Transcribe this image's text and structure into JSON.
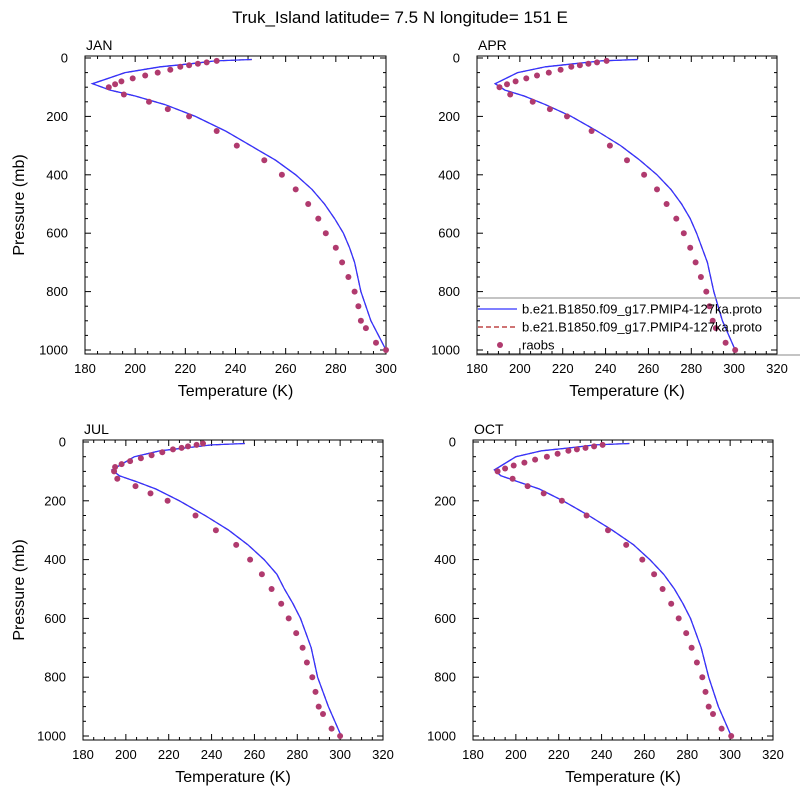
{
  "figure_title": "Truk_Island  latitude= 7.5 N longitude= 151 E",
  "legend": {
    "entries": [
      {
        "label": "b.e21.B1850.f09_g17.PMIP4-127ka.proto",
        "style": "solid",
        "color": "#3333ff"
      },
      {
        "label": "b.e21.B1850.f09_g17.PMIP4-127ka.proto",
        "style": "dashed",
        "color": "#b22222"
      },
      {
        "label": "raobs",
        "style": "dots",
        "color": "#b03a6e"
      }
    ]
  },
  "chart_data": [
    {
      "type": "line",
      "title": "JAN",
      "xlabel": "Temperature (K)",
      "ylabel": "Pressure (mb)",
      "xlim": [
        180,
        300
      ],
      "ylim": [
        1000,
        0
      ],
      "xticks": [
        "180",
        "200",
        "220",
        "240",
        "260",
        "280",
        "300"
      ],
      "yticks": [
        "0",
        "200",
        "400",
        "600",
        "800",
        "1000"
      ],
      "model": {
        "temperature": [
          246.5,
          232.0,
          222.0,
          210.0,
          196.0,
          183.0,
          190.0,
          200.0,
          212.0,
          224.0,
          236.0,
          246.0,
          256.0,
          264.0,
          270.5,
          275.5,
          279.5,
          283.0,
          285.5,
          287.5,
          290.0,
          294.0,
          297.0,
          300.0
        ],
        "pressure": [
          5,
          10,
          20,
          30,
          50,
          88,
          110,
          130,
          160,
          200,
          250,
          300,
          350,
          400,
          450,
          500,
          550,
          600,
          650,
          700,
          800,
          900,
          950,
          1000
        ]
      },
      "raobs": {
        "temperature": [
          232.5,
          228.5,
          225.0,
          221.5,
          218.0,
          214.0,
          209.0,
          204.0,
          199.0,
          194.5,
          192.0,
          189.5,
          195.5,
          205.5,
          213.0,
          221.5,
          232.5,
          240.5,
          251.5,
          258.5,
          264.0,
          269.0,
          273.0,
          276.0,
          280.0,
          282.5,
          285.0,
          287.5,
          289.0,
          290.0,
          292.0,
          296.0,
          300.0
        ],
        "pressure": [
          10,
          15,
          20,
          25,
          30,
          40,
          50,
          60,
          70,
          80,
          90,
          100,
          125,
          150,
          175,
          200,
          250,
          300,
          350,
          400,
          450,
          500,
          550,
          600,
          650,
          700,
          750,
          800,
          850,
          900,
          925,
          975,
          1000
        ]
      }
    },
    {
      "type": "line",
      "title": "APR",
      "xlabel": "Temperature (K)",
      "ylabel": "",
      "xlim": [
        180,
        320
      ],
      "ylim": [
        1000,
        0
      ],
      "xticks": [
        "180",
        "200",
        "220",
        "240",
        "260",
        "280",
        "300",
        "320"
      ],
      "yticks": [
        "0",
        "200",
        "400",
        "600",
        "800",
        "1000"
      ],
      "model": {
        "temperature": [
          255.0,
          238.0,
          225.0,
          212.0,
          199.0,
          188.5,
          193.0,
          202.0,
          212.0,
          224.0,
          236.0,
          247.0,
          256.0,
          264.0,
          270.5,
          275.5,
          279.5,
          282.5,
          285.0,
          287.5,
          290.5,
          294.5,
          297.5,
          300.5
        ],
        "pressure": [
          5,
          10,
          20,
          30,
          50,
          88,
          110,
          130,
          160,
          200,
          250,
          300,
          350,
          400,
          450,
          500,
          550,
          600,
          650,
          700,
          800,
          900,
          950,
          1000
        ]
      },
      "raobs": {
        "temperature": [
          240.5,
          236.0,
          232.0,
          228.0,
          224.0,
          219.0,
          213.5,
          208.0,
          203.0,
          198.0,
          194.0,
          190.5,
          195.5,
          206.0,
          214.0,
          222.0,
          233.5,
          242.0,
          250.0,
          258.0,
          264.0,
          268.5,
          273.0,
          276.5,
          279.5,
          282.0,
          284.5,
          287.0,
          288.5,
          290.0,
          291.5,
          296.0,
          300.5
        ],
        "pressure": [
          10,
          15,
          20,
          25,
          30,
          40,
          50,
          60,
          70,
          80,
          90,
          100,
          125,
          150,
          175,
          200,
          250,
          300,
          350,
          400,
          450,
          500,
          550,
          600,
          650,
          700,
          750,
          800,
          850,
          900,
          925,
          975,
          1000
        ]
      }
    },
    {
      "type": "line",
      "title": "JUL",
      "xlabel": "Temperature (K)",
      "ylabel": "Pressure (mb)",
      "xlim": [
        180,
        320
      ],
      "ylim": [
        1000,
        0
      ],
      "xticks": [
        "180",
        "200",
        "220",
        "240",
        "260",
        "280",
        "300",
        "320"
      ],
      "yticks": [
        "0",
        "200",
        "400",
        "600",
        "800",
        "1000"
      ],
      "model": {
        "temperature": [
          255.5,
          240.0,
          228.0,
          216.0,
          204.0,
          193.5,
          197.0,
          205.0,
          214.0,
          225.0,
          237.0,
          248.0,
          257.0,
          264.5,
          270.5,
          274.0,
          278.0,
          281.5,
          284.0,
          286.5,
          289.5,
          294.5,
          297.5,
          300.5
        ],
        "pressure": [
          5,
          10,
          20,
          30,
          50,
          95,
          115,
          135,
          160,
          200,
          250,
          300,
          350,
          400,
          450,
          500,
          550,
          600,
          650,
          700,
          800,
          900,
          950,
          1000
        ]
      },
      "raobs": {
        "temperature": [
          236.0,
          233.0,
          229.0,
          226.0,
          222.0,
          217.0,
          212.0,
          207.0,
          202.0,
          198.0,
          195.0,
          194.5,
          196.0,
          204.5,
          211.5,
          219.5,
          232.5,
          242.0,
          251.5,
          258.0,
          263.5,
          268.0,
          272.5,
          276.0,
          279.5,
          282.5,
          284.5,
          287.0,
          288.5,
          290.0,
          292.0,
          296.0,
          300.0
        ],
        "pressure": [
          5,
          10,
          15,
          20,
          25,
          35,
          45,
          55,
          65,
          75,
          85,
          100,
          125,
          150,
          175,
          200,
          250,
          300,
          350,
          400,
          450,
          500,
          550,
          600,
          650,
          700,
          750,
          800,
          850,
          900,
          925,
          975,
          1000
        ]
      }
    },
    {
      "type": "line",
      "title": "OCT",
      "xlabel": "Temperature (K)",
      "ylabel": "",
      "xlim": [
        180,
        320
      ],
      "ylim": [
        1000,
        0
      ],
      "xticks": [
        "180",
        "200",
        "220",
        "240",
        "260",
        "280",
        "300",
        "320"
      ],
      "yticks": [
        "0",
        "200",
        "400",
        "600",
        "800",
        "1000"
      ],
      "model": {
        "temperature": [
          253.0,
          237.0,
          225.0,
          212.0,
          200.0,
          190.0,
          193.0,
          201.0,
          211.0,
          222.0,
          234.0,
          245.0,
          255.0,
          262.5,
          269.0,
          274.0,
          278.0,
          281.5,
          284.0,
          286.5,
          290.0,
          294.5,
          297.5,
          300.5
        ],
        "pressure": [
          5,
          10,
          20,
          30,
          50,
          95,
          115,
          135,
          160,
          200,
          250,
          300,
          350,
          400,
          450,
          500,
          550,
          600,
          650,
          700,
          800,
          900,
          950,
          1000
        ]
      },
      "raobs": {
        "temperature": [
          240.5,
          236.5,
          232.5,
          228.5,
          224.5,
          219.5,
          214.5,
          209.0,
          204.0,
          199.0,
          195.0,
          191.5,
          198.5,
          205.5,
          213.0,
          221.5,
          233.0,
          243.0,
          251.5,
          259.0,
          264.5,
          268.5,
          272.5,
          276.0,
          279.5,
          282.0,
          284.5,
          287.0,
          288.5,
          290.0,
          292.0,
          296.0,
          300.5
        ],
        "pressure": [
          10,
          15,
          20,
          25,
          30,
          40,
          50,
          60,
          70,
          80,
          90,
          100,
          125,
          150,
          175,
          200,
          250,
          300,
          350,
          400,
          450,
          500,
          550,
          600,
          650,
          700,
          750,
          800,
          850,
          900,
          925,
          975,
          1000
        ]
      }
    }
  ]
}
